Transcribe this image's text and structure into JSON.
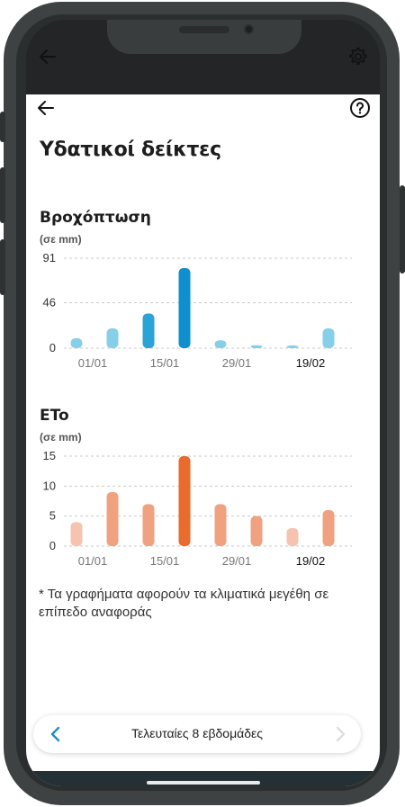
{
  "page": {
    "title": "Υδατικοί δείκτες",
    "footnote": "* Τα γραφήματα αφορούν τα κλιματικά μεγέθη σε επίπεδο αναφοράς"
  },
  "icons": {
    "top_back": "arrow-left-icon",
    "top_settings": "gear-icon",
    "back": "arrow-left-icon",
    "help": "help-circle-icon",
    "prev": "chevron-left-icon",
    "next": "chevron-right-icon"
  },
  "charts": {
    "rain": {
      "title": "Βροχόπτωση",
      "unit": "(σε mm)"
    },
    "eto": {
      "title": "ETo",
      "unit": "(σε mm)"
    }
  },
  "chart_data": [
    {
      "type": "bar",
      "title": "Βροχόπτωση",
      "ylabel": "(σε mm)",
      "yticks": [
        0,
        46,
        91
      ],
      "ylim": [
        0,
        91
      ],
      "xticks": [
        "01/01",
        "15/01",
        "29/01",
        "19/02"
      ],
      "values": [
        10,
        20,
        35,
        81,
        8,
        3,
        1,
        20
      ],
      "highlight_index": 3,
      "colors": {
        "normal": "#86cfe8",
        "mid": "#2aa3d6",
        "highlight": "#0f8fcd"
      }
    },
    {
      "type": "bar",
      "title": "ETo",
      "ylabel": "(σε mm)",
      "yticks": [
        0,
        5,
        10,
        15
      ],
      "ylim": [
        0,
        15
      ],
      "xticks": [
        "01/01",
        "15/01",
        "29/01",
        "19/02"
      ],
      "values": [
        4,
        9,
        7,
        15,
        7,
        5,
        3,
        6
      ],
      "highlight_index": 3,
      "colors": {
        "light": "#f6c4ae",
        "normal": "#f0a180",
        "highlight": "#ea6b2e"
      }
    }
  ],
  "bottom_nav": {
    "label": "Τελευταίες 8 εβδομάδες"
  }
}
